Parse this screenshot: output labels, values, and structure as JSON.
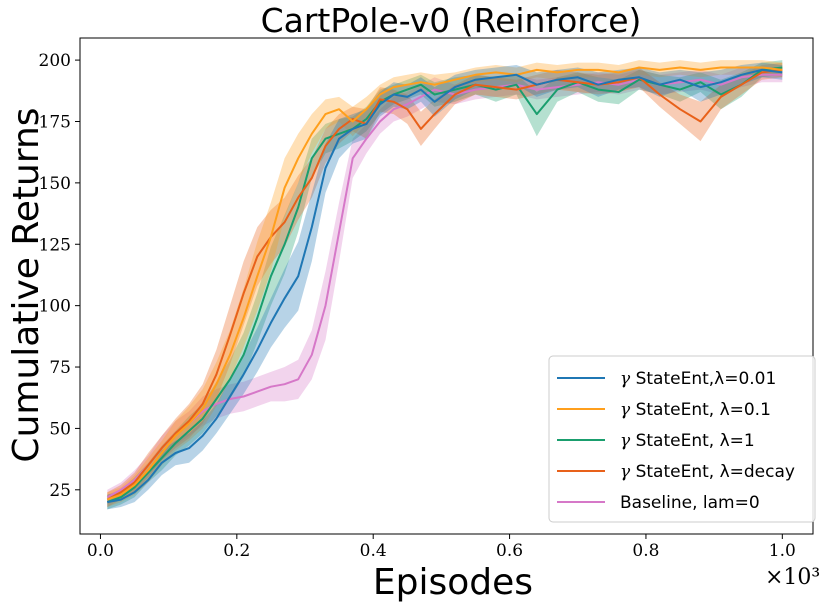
{
  "chart_data": {
    "type": "line",
    "title": "CartPole-v0 (Reinforce)",
    "xlabel": "Episodes",
    "ylabel": "Cumulative Returns",
    "x_scale_label": "×10³",
    "xlim": [
      -0.03,
      1.045
    ],
    "ylim": [
      7,
      209
    ],
    "xticks": [
      0.0,
      0.2,
      0.4,
      0.6,
      0.8,
      1.0
    ],
    "xtick_labels": [
      "0.0",
      "0.2",
      "0.4",
      "0.6",
      "0.8",
      "1.0"
    ],
    "yticks": [
      25,
      50,
      75,
      100,
      125,
      150,
      175,
      200
    ],
    "ytick_labels": [
      "25",
      "50",
      "75",
      "100",
      "125",
      "150",
      "175",
      "200"
    ],
    "legend_position": "lower-right",
    "series": [
      {
        "name": "StateEnt, λ=0.01",
        "legend_symbol": "γ",
        "legend_text": "StateEnt,λ=0.01",
        "color": "#1f77b4",
        "x": [
          0.01,
          0.03,
          0.05,
          0.07,
          0.09,
          0.11,
          0.13,
          0.15,
          0.17,
          0.19,
          0.21,
          0.23,
          0.25,
          0.27,
          0.29,
          0.31,
          0.33,
          0.35,
          0.37,
          0.39,
          0.41,
          0.43,
          0.45,
          0.47,
          0.49,
          0.52,
          0.55,
          0.58,
          0.61,
          0.64,
          0.67,
          0.7,
          0.73,
          0.76,
          0.79,
          0.82,
          0.85,
          0.88,
          0.91,
          0.94,
          0.97,
          1.0
        ],
        "values": [
          20,
          21,
          24,
          29,
          36,
          40,
          42,
          47,
          54,
          63,
          72,
          82,
          93,
          103,
          112,
          132,
          156,
          168,
          172,
          174,
          182,
          186,
          185,
          188,
          183,
          189,
          192,
          193,
          194,
          190,
          192,
          193,
          190,
          192,
          193,
          190,
          192,
          189,
          191,
          194,
          196,
          195
        ],
        "band": [
          3,
          3,
          4,
          4,
          5,
          5,
          6,
          6,
          6,
          7,
          8,
          9,
          10,
          12,
          14,
          14,
          10,
          8,
          6,
          6,
          5,
          5,
          5,
          5,
          6,
          5,
          4,
          4,
          4,
          5,
          4,
          4,
          5,
          4,
          4,
          5,
          4,
          6,
          5,
          4,
          3,
          3
        ]
      },
      {
        "name": "StateEnt, λ=0.1",
        "legend_symbol": "γ",
        "legend_text": "StateEnt, λ=0.1",
        "color": "#ff9f1c",
        "x": [
          0.01,
          0.03,
          0.05,
          0.07,
          0.09,
          0.11,
          0.13,
          0.15,
          0.17,
          0.19,
          0.21,
          0.23,
          0.25,
          0.27,
          0.29,
          0.31,
          0.33,
          0.35,
          0.37,
          0.39,
          0.41,
          0.43,
          0.45,
          0.47,
          0.49,
          0.52,
          0.55,
          0.58,
          0.61,
          0.64,
          0.67,
          0.7,
          0.73,
          0.76,
          0.79,
          0.82,
          0.85,
          0.88,
          0.91,
          0.94,
          0.97,
          1.0
        ],
        "values": [
          21,
          23,
          27,
          33,
          40,
          47,
          52,
          58,
          68,
          80,
          95,
          112,
          128,
          148,
          160,
          170,
          178,
          180,
          175,
          180,
          186,
          189,
          190,
          191,
          190,
          192,
          194,
          195,
          194,
          196,
          195,
          196,
          196,
          195,
          197,
          196,
          197,
          196,
          197,
          197,
          197,
          196
        ],
        "band": [
          3,
          3,
          4,
          5,
          5,
          6,
          7,
          8,
          9,
          10,
          12,
          14,
          14,
          12,
          10,
          8,
          6,
          5,
          6,
          5,
          4,
          4,
          4,
          4,
          4,
          3,
          3,
          3,
          3,
          3,
          3,
          3,
          3,
          3,
          3,
          3,
          3,
          3,
          3,
          3,
          3,
          3
        ]
      },
      {
        "name": "StateEnt, λ=1",
        "legend_symbol": "γ",
        "legend_text": "StateEnt, λ=1",
        "color": "#1a9e6e",
        "x": [
          0.01,
          0.03,
          0.05,
          0.07,
          0.09,
          0.11,
          0.13,
          0.15,
          0.17,
          0.19,
          0.21,
          0.23,
          0.25,
          0.27,
          0.29,
          0.31,
          0.33,
          0.35,
          0.37,
          0.39,
          0.41,
          0.43,
          0.45,
          0.47,
          0.49,
          0.52,
          0.55,
          0.58,
          0.61,
          0.64,
          0.67,
          0.7,
          0.73,
          0.76,
          0.79,
          0.82,
          0.85,
          0.88,
          0.91,
          0.94,
          0.97,
          1.0
        ],
        "values": [
          20,
          22,
          26,
          32,
          38,
          44,
          49,
          54,
          62,
          70,
          80,
          95,
          112,
          125,
          140,
          160,
          168,
          170,
          172,
          176,
          183,
          186,
          188,
          190,
          186,
          188,
          190,
          188,
          190,
          178,
          188,
          191,
          188,
          187,
          192,
          190,
          188,
          191,
          186,
          190,
          196,
          197
        ],
        "band": [
          3,
          3,
          4,
          4,
          5,
          5,
          6,
          6,
          7,
          8,
          9,
          10,
          12,
          12,
          10,
          8,
          6,
          6,
          5,
          5,
          5,
          4,
          4,
          4,
          5,
          5,
          4,
          5,
          4,
          9,
          5,
          4,
          5,
          5,
          4,
          4,
          5,
          4,
          6,
          5,
          3,
          3
        ]
      },
      {
        "name": "StateEnt, λ=decay",
        "legend_symbol": "γ",
        "legend_text": "StateEnt, λ=decay",
        "color": "#e8611a",
        "x": [
          0.01,
          0.03,
          0.05,
          0.07,
          0.09,
          0.11,
          0.13,
          0.15,
          0.17,
          0.19,
          0.21,
          0.23,
          0.25,
          0.27,
          0.29,
          0.31,
          0.33,
          0.35,
          0.37,
          0.39,
          0.41,
          0.43,
          0.45,
          0.47,
          0.49,
          0.52,
          0.55,
          0.58,
          0.61,
          0.64,
          0.67,
          0.7,
          0.73,
          0.76,
          0.79,
          0.82,
          0.85,
          0.88,
          0.91,
          0.94,
          0.97,
          1.0
        ],
        "values": [
          21,
          24,
          28,
          35,
          42,
          48,
          53,
          60,
          72,
          88,
          105,
          120,
          128,
          134,
          144,
          152,
          165,
          172,
          176,
          174,
          184,
          183,
          180,
          172,
          178,
          186,
          190,
          189,
          188,
          190,
          192,
          191,
          190,
          191,
          193,
          186,
          180,
          175,
          185,
          190,
          195,
          196
        ],
        "band": [
          3,
          3,
          4,
          5,
          5,
          6,
          7,
          8,
          10,
          12,
          13,
          12,
          11,
          10,
          9,
          8,
          7,
          6,
          5,
          6,
          5,
          5,
          6,
          7,
          6,
          4,
          4,
          4,
          4,
          4,
          4,
          4,
          4,
          4,
          4,
          5,
          6,
          8,
          5,
          4,
          3,
          3
        ]
      },
      {
        "name": "Baseline, lam=0",
        "legend_symbol": "",
        "legend_text": "Baseline, lam=0",
        "color": "#d678c8",
        "x": [
          0.01,
          0.03,
          0.05,
          0.07,
          0.09,
          0.11,
          0.13,
          0.15,
          0.17,
          0.19,
          0.21,
          0.23,
          0.25,
          0.27,
          0.29,
          0.31,
          0.33,
          0.35,
          0.37,
          0.39,
          0.41,
          0.43,
          0.45,
          0.47,
          0.49,
          0.52,
          0.55,
          0.58,
          0.61,
          0.64,
          0.67,
          0.7,
          0.73,
          0.76,
          0.79,
          0.82,
          0.85,
          0.88,
          0.91,
          0.94,
          0.97,
          1.0
        ],
        "values": [
          22,
          25,
          29,
          35,
          42,
          48,
          52,
          57,
          60,
          62,
          63,
          65,
          67,
          68,
          70,
          80,
          100,
          130,
          160,
          168,
          175,
          180,
          182,
          185,
          188,
          186,
          188,
          189,
          190,
          188,
          189,
          190,
          191,
          190,
          192,
          190,
          191,
          192,
          190,
          193,
          194,
          194
        ],
        "band": [
          3,
          3,
          4,
          4,
          5,
          5,
          5,
          6,
          6,
          6,
          6,
          6,
          6,
          7,
          8,
          10,
          14,
          12,
          8,
          6,
          5,
          5,
          5,
          5,
          5,
          4,
          4,
          4,
          4,
          4,
          4,
          4,
          4,
          4,
          4,
          4,
          4,
          4,
          4,
          4,
          3,
          3
        ]
      }
    ]
  }
}
